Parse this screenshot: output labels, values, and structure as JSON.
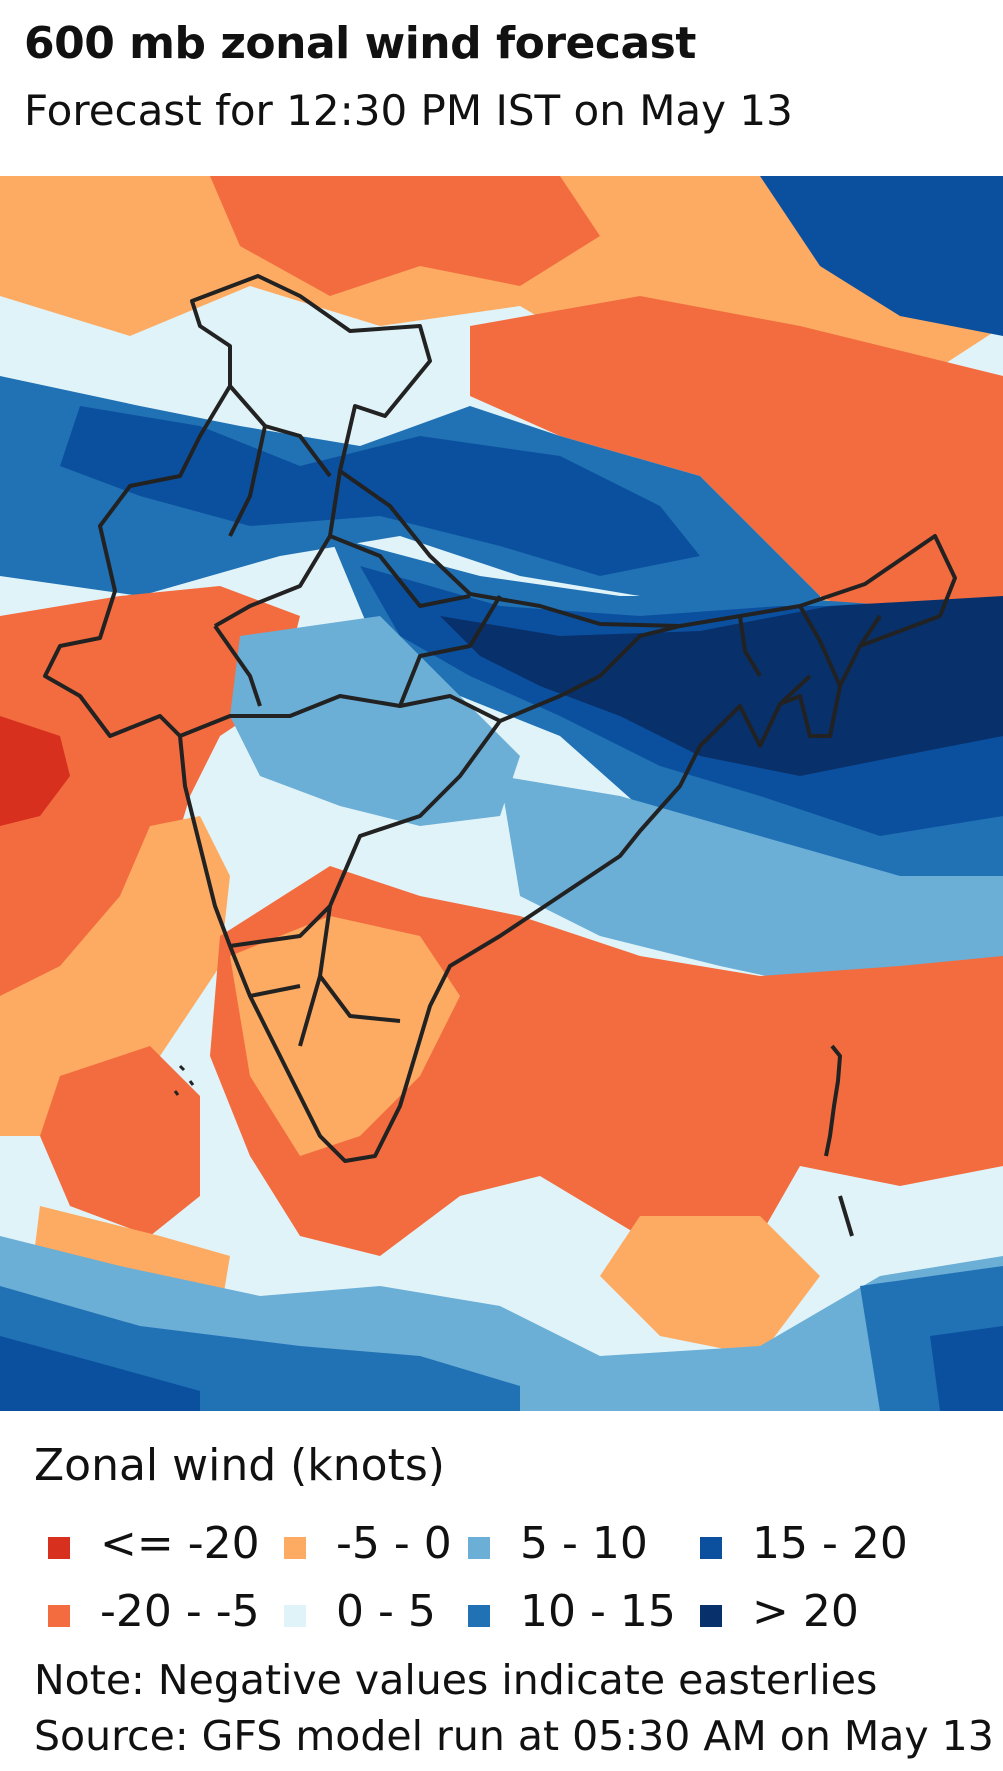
{
  "title": "600 mb zonal wind forecast",
  "subtitle": "Forecast for 12:30 PM IST on May 13",
  "legend": {
    "title": "Zonal wind (knots)",
    "items": [
      {
        "label": "<= -20",
        "color": "#d7301f"
      },
      {
        "label": "-20 - -5",
        "color": "#f26c3f"
      },
      {
        "label": "-5 - 0",
        "color": "#fdab62"
      },
      {
        "label": "0 - 5",
        "color": "#e0f3f8"
      },
      {
        "label": "5 - 10",
        "color": "#6baed6"
      },
      {
        "label": "10 - 15",
        "color": "#2171b5"
      },
      {
        "label": "15 - 20",
        "color": "#0b509e"
      },
      {
        "label": "> 20",
        "color": "#08306b"
      }
    ]
  },
  "note": "Note: Negative values indicate easterlies",
  "source": "Source: GFS model run at 05:30 AM on May 13",
  "boundary_color": "#222222"
}
